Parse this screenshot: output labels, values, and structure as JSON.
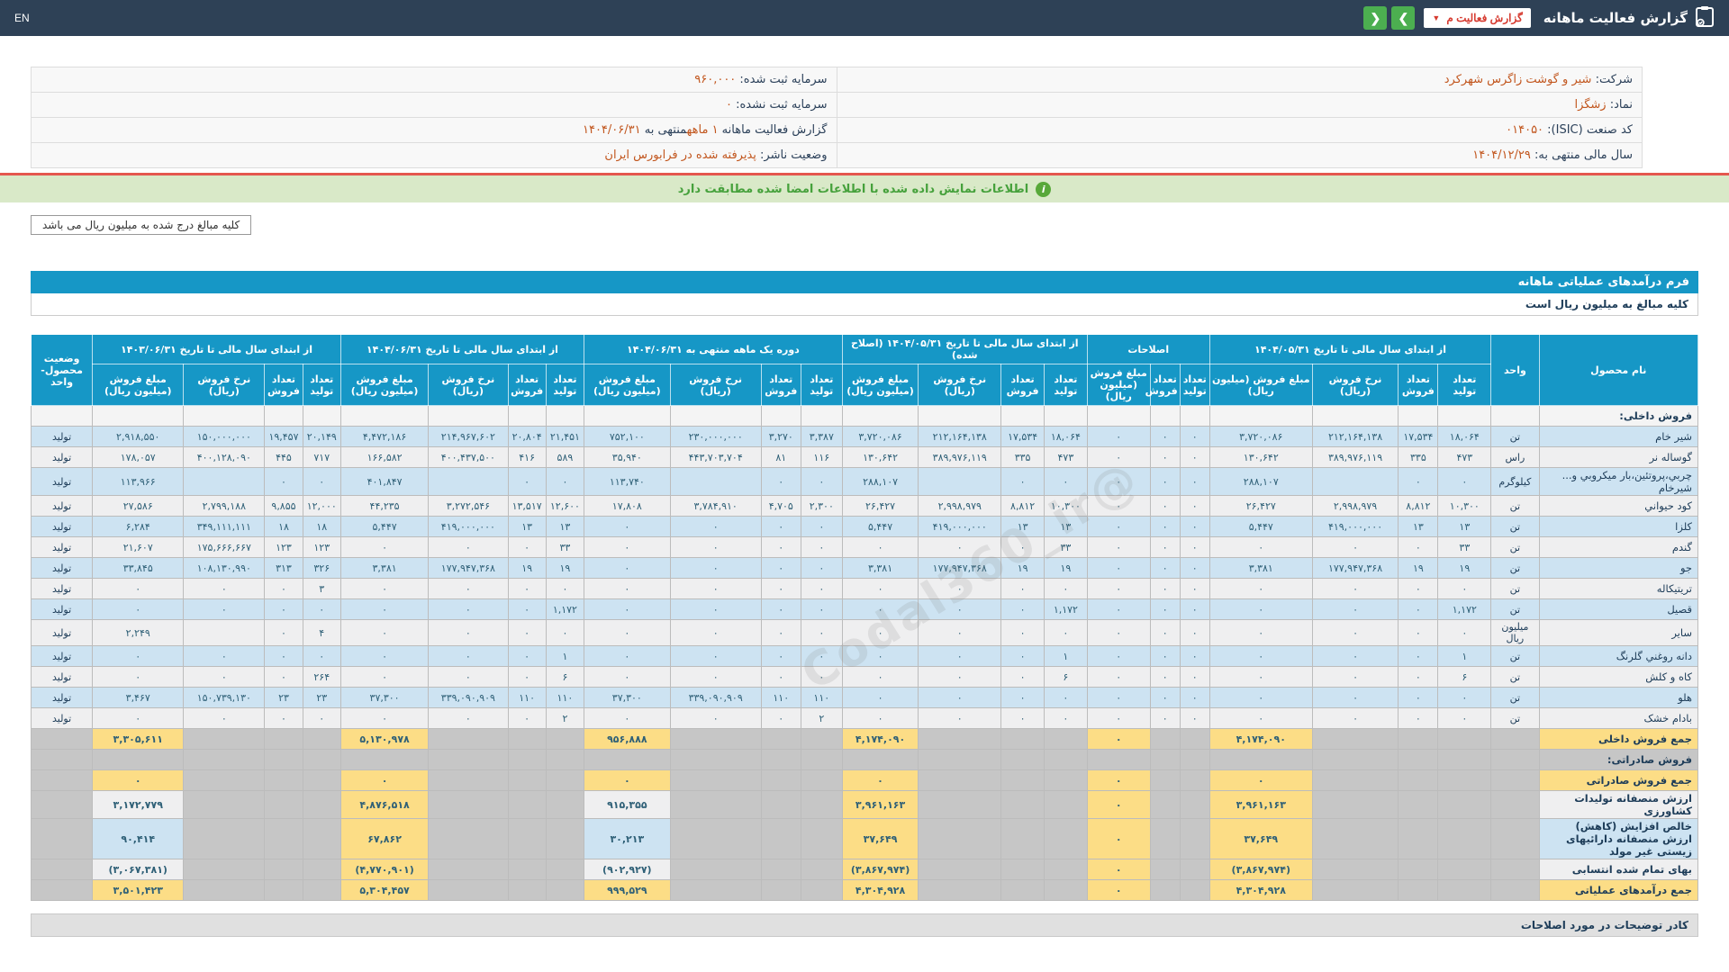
{
  "topbar": {
    "title": "گزارش فعالیت ماهانه",
    "report_dropdown": "گزارش فعالیت م",
    "dropdown_caret": "▼",
    "nav_next": "❯",
    "nav_prev": "❮",
    "language": "EN"
  },
  "info": {
    "rows": [
      {
        "right": [
          {
            "t": "شرکت:  ",
            "hl": false
          },
          {
            "t": "شیر و گوشت زاگرس شهرکرد",
            "hl": true
          }
        ],
        "left": [
          {
            "t": "سرمایه ثبت شده:  ",
            "hl": false
          },
          {
            "t": "۹۶۰,۰۰۰",
            "hl": true
          }
        ]
      },
      {
        "right": [
          {
            "t": "نماد:  ",
            "hl": false
          },
          {
            "t": "زشگزا",
            "hl": true
          }
        ],
        "left": [
          {
            "t": "سرمایه ثبت نشده:  ",
            "hl": false
          },
          {
            "t": "۰",
            "hl": true
          }
        ]
      },
      {
        "right": [
          {
            "t": "کد صنعت (ISIC):  ",
            "hl": false
          },
          {
            "t": "۰۱۴۰۵۰",
            "hl": true
          }
        ],
        "left": [
          {
            "t": "گزارش فعالیت ماهانه ",
            "hl": false
          },
          {
            "t": "۱ ماهه",
            "hl": true
          },
          {
            "t": "منتهی به ",
            "hl": false
          },
          {
            "t": "۱۴۰۴/۰۶/۳۱",
            "hl": true
          }
        ]
      },
      {
        "right": [
          {
            "t": "سال مالی منتهی به:  ",
            "hl": false
          },
          {
            "t": "۱۴۰۴/۱۲/۲۹",
            "hl": true
          }
        ],
        "left": [
          {
            "t": "وضعیت ناشر:  ",
            "hl": false
          },
          {
            "t": "پذیرفته شده در فرابورس ایران",
            "hl": true
          }
        ]
      }
    ]
  },
  "notice": {
    "text": "اطلاعات نمایش داده شده با اطلاعات امضا شده مطابقت دارد",
    "icon": "i"
  },
  "unit_note": "کلیه مبالغ درج شده به میلیون ریال می باشد",
  "form": {
    "title": "فرم درآمدهای عملیاتی ماهانه",
    "subtitle": "کلیه مبالغ به میلیون ریال است"
  },
  "watermark": "@Codal360_ir",
  "footer": {
    "comments_title": "کادر توضیحات در مورد اصلاحات"
  },
  "table": {
    "col_product": "نام محصول",
    "col_unit": "واحد",
    "col_status": "وضعیت محصول-واحد",
    "groups": [
      {
        "key": "g1",
        "label": "از ابتدای سال مالی تا تاریخ ۱۴۰۴/۰۵/۳۱",
        "cols": [
          "تعداد تولید",
          "تعداد فروش",
          "نرخ فروش (ریال)",
          "مبلغ فروش (میلیون ریال)"
        ]
      },
      {
        "key": "adj",
        "label": "اصلاحات",
        "cols": [
          "تعداد تولید",
          "تعداد فروش",
          "مبلغ فروش (میلیون ریال)"
        ]
      },
      {
        "key": "g2",
        "label": "از ابتدای سال مالی تا تاریخ ۱۴۰۴/۰۵/۳۱ (اصلاح شده)",
        "cols": [
          "تعداد تولید",
          "تعداد فروش",
          "نرخ فروش (ریال)",
          "مبلغ فروش (میلیون ریال)"
        ]
      },
      {
        "key": "month",
        "label": "دوره یک ماهه منتهی به ۱۴۰۴/۰۶/۳۱",
        "cols": [
          "تعداد تولید",
          "تعداد فروش",
          "نرخ فروش (ریال)",
          "مبلغ فروش (میلیون ریال)"
        ]
      },
      {
        "key": "ytd",
        "label": "از ابتدای سال مالی تا تاریخ ۱۴۰۴/۰۶/۳۱",
        "cols": [
          "تعداد تولید",
          "تعداد فروش",
          "نرخ فروش (ریال)",
          "مبلغ فروش (میلیون ریال)"
        ]
      },
      {
        "key": "prev",
        "label": "از ابتدای سال مالی تا تاریخ ۱۴۰۳/۰۶/۳۱",
        "cols": [
          "تعداد تولید",
          "تعداد فروش",
          "نرخ فروش (ریال)",
          "مبلغ فروش (میلیون ریال)"
        ]
      }
    ],
    "rows": [
      {
        "type": "section",
        "variant": "light",
        "name": "فروش داخلی:"
      },
      {
        "type": "product",
        "shade": "blue",
        "name": "شیر خام",
        "unit": "تن",
        "status": "تولید",
        "g1": [
          "۱۸,۰۶۴",
          "۱۷,۵۳۴",
          "۲۱۲,۱۶۴,۱۳۸",
          "۳,۷۲۰,۰۸۶"
        ],
        "adj": [
          "۰",
          "۰",
          "۰"
        ],
        "g2": [
          "۱۸,۰۶۴",
          "۱۷,۵۳۴",
          "۲۱۲,۱۶۴,۱۳۸",
          "۳,۷۲۰,۰۸۶"
        ],
        "month": [
          "۳,۳۸۷",
          "۳,۲۷۰",
          "۲۳۰,۰۰۰,۰۰۰",
          "۷۵۲,۱۰۰"
        ],
        "ytd": [
          "۲۱,۴۵۱",
          "۲۰,۸۰۴",
          "۲۱۴,۹۶۷,۶۰۲",
          "۴,۴۷۲,۱۸۶"
        ],
        "prev": [
          "۲۰,۱۴۹",
          "۱۹,۴۵۷",
          "۱۵۰,۰۰۰,۰۰۰",
          "۲,۹۱۸,۵۵۰"
        ]
      },
      {
        "type": "product",
        "shade": "white",
        "name": "گوساله نر",
        "unit": "راس",
        "status": "تولید",
        "g1": [
          "۴۷۳",
          "۳۳۵",
          "۳۸۹,۹۷۶,۱۱۹",
          "۱۳۰,۶۴۲"
        ],
        "adj": [
          "۰",
          "۰",
          "۰"
        ],
        "g2": [
          "۴۷۳",
          "۳۳۵",
          "۳۸۹,۹۷۶,۱۱۹",
          "۱۳۰,۶۴۲"
        ],
        "month": [
          "۱۱۶",
          "۸۱",
          "۴۴۳,۷۰۳,۷۰۴",
          "۳۵,۹۴۰"
        ],
        "ytd": [
          "۵۸۹",
          "۴۱۶",
          "۴۰۰,۴۳۷,۵۰۰",
          "۱۶۶,۵۸۲"
        ],
        "prev": [
          "۷۱۷",
          "۴۴۵",
          "۴۰۰,۱۲۸,۰۹۰",
          "۱۷۸,۰۵۷"
        ]
      },
      {
        "type": "product",
        "shade": "blue",
        "name": "چربي،پروتئين،بار ميکروبي و... شيرخام",
        "unit": "کیلوگرم",
        "status": "تولید",
        "g1": [
          "۰",
          "۰",
          "",
          "۲۸۸,۱۰۷"
        ],
        "adj": [
          "۰",
          "۰",
          "۰"
        ],
        "g2": [
          "۰",
          "۰",
          "",
          "۲۸۸,۱۰۷"
        ],
        "month": [
          "۰",
          "۰",
          "",
          "۱۱۳,۷۴۰"
        ],
        "ytd": [
          "۰",
          "۰",
          "",
          "۴۰۱,۸۴۷"
        ],
        "prev": [
          "۰",
          "۰",
          "",
          "۱۱۳,۹۶۶"
        ]
      },
      {
        "type": "product",
        "shade": "white",
        "name": "کود حيواني",
        "unit": "تن",
        "status": "تولید",
        "g1": [
          "۱۰,۳۰۰",
          "۸,۸۱۲",
          "۲,۹۹۸,۹۷۹",
          "۲۶,۴۲۷"
        ],
        "adj": [
          "۰",
          "۰",
          "۰"
        ],
        "g2": [
          "۱۰,۳۰۰",
          "۸,۸۱۲",
          "۲,۹۹۸,۹۷۹",
          "۲۶,۴۲۷"
        ],
        "month": [
          "۲,۳۰۰",
          "۴,۷۰۵",
          "۳,۷۸۴,۹۱۰",
          "۱۷,۸۰۸"
        ],
        "ytd": [
          "۱۲,۶۰۰",
          "۱۳,۵۱۷",
          "۳,۲۷۲,۵۴۶",
          "۴۴,۲۳۵"
        ],
        "prev": [
          "۱۲,۰۰۰",
          "۹,۸۵۵",
          "۲,۷۹۹,۱۸۸",
          "۲۷,۵۸۶"
        ]
      },
      {
        "type": "product",
        "shade": "blue",
        "name": "کلزا",
        "unit": "تن",
        "status": "تولید",
        "g1": [
          "۱۳",
          "۱۳",
          "۴۱۹,۰۰۰,۰۰۰",
          "۵,۴۴۷"
        ],
        "adj": [
          "۰",
          "۰",
          "۰"
        ],
        "g2": [
          "۱۳",
          "۱۳",
          "۴۱۹,۰۰۰,۰۰۰",
          "۵,۴۴۷"
        ],
        "month": [
          "۰",
          "۰",
          "۰",
          "۰"
        ],
        "ytd": [
          "۱۳",
          "۱۳",
          "۴۱۹,۰۰۰,۰۰۰",
          "۵,۴۴۷"
        ],
        "prev": [
          "۱۸",
          "۱۸",
          "۳۴۹,۱۱۱,۱۱۱",
          "۶,۲۸۴"
        ]
      },
      {
        "type": "product",
        "shade": "white",
        "name": "گندم",
        "unit": "تن",
        "status": "تولید",
        "g1": [
          "۳۳",
          "۰",
          "۰",
          "۰"
        ],
        "adj": [
          "۰",
          "۰",
          "۰"
        ],
        "g2": [
          "۳۳",
          "۰",
          "۰",
          "۰"
        ],
        "month": [
          "۰",
          "۰",
          "۰",
          "۰"
        ],
        "ytd": [
          "۳۳",
          "۰",
          "۰",
          "۰"
        ],
        "prev": [
          "۱۲۳",
          "۱۲۳",
          "۱۷۵,۶۶۶,۶۶۷",
          "۲۱,۶۰۷"
        ]
      },
      {
        "type": "product",
        "shade": "blue",
        "name": "جو",
        "unit": "تن",
        "status": "تولید",
        "g1": [
          "۱۹",
          "۱۹",
          "۱۷۷,۹۴۷,۳۶۸",
          "۳,۳۸۱"
        ],
        "adj": [
          "۰",
          "۰",
          "۰"
        ],
        "g2": [
          "۱۹",
          "۱۹",
          "۱۷۷,۹۴۷,۳۶۸",
          "۳,۳۸۱"
        ],
        "month": [
          "۰",
          "۰",
          "۰",
          "۰"
        ],
        "ytd": [
          "۱۹",
          "۱۹",
          "۱۷۷,۹۴۷,۳۶۸",
          "۳,۳۸۱"
        ],
        "prev": [
          "۳۲۶",
          "۳۱۳",
          "۱۰۸,۱۳۰,۹۹۰",
          "۳۳,۸۴۵"
        ]
      },
      {
        "type": "product",
        "shade": "white",
        "name": "تریتیکاله",
        "unit": "تن",
        "status": "تولید",
        "g1": [
          "۰",
          "۰",
          "۰",
          "۰"
        ],
        "adj": [
          "۰",
          "۰",
          "۰"
        ],
        "g2": [
          "۰",
          "۰",
          "۰",
          "۰"
        ],
        "month": [
          "۰",
          "۰",
          "۰",
          "۰"
        ],
        "ytd": [
          "۰",
          "۰",
          "۰",
          "۰"
        ],
        "prev": [
          "۳",
          "۰",
          "۰",
          "۰"
        ]
      },
      {
        "type": "product",
        "shade": "blue",
        "name": "قصیل",
        "unit": "تن",
        "status": "تولید",
        "g1": [
          "۱,۱۷۲",
          "۰",
          "۰",
          "۰"
        ],
        "adj": [
          "۰",
          "۰",
          "۰"
        ],
        "g2": [
          "۱,۱۷۲",
          "۰",
          "۰",
          "۰"
        ],
        "month": [
          "۰",
          "۰",
          "۰",
          "۰"
        ],
        "ytd": [
          "۱,۱۷۲",
          "۰",
          "۰",
          "۰"
        ],
        "prev": [
          "۰",
          "۰",
          "۰",
          "۰"
        ]
      },
      {
        "type": "product",
        "shade": "white",
        "name": "سایر",
        "unit": "میلیون ریال",
        "status": "تولید",
        "g1": [
          "۰",
          "۰",
          "۰",
          "۰"
        ],
        "adj": [
          "۰",
          "۰",
          "۰"
        ],
        "g2": [
          "۰",
          "۰",
          "۰",
          "۰"
        ],
        "month": [
          "۰",
          "۰",
          "۰",
          "۰"
        ],
        "ytd": [
          "۰",
          "۰",
          "۰",
          "۰"
        ],
        "prev": [
          "۴",
          "۰",
          "",
          "۲,۲۴۹"
        ]
      },
      {
        "type": "product",
        "shade": "blue",
        "name": "دانه روغني گلرنگ",
        "unit": "تن",
        "status": "تولید",
        "g1": [
          "۱",
          "۰",
          "۰",
          "۰"
        ],
        "adj": [
          "۰",
          "۰",
          "۰"
        ],
        "g2": [
          "۱",
          "۰",
          "۰",
          "۰"
        ],
        "month": [
          "۰",
          "۰",
          "۰",
          "۰"
        ],
        "ytd": [
          "۱",
          "۰",
          "۰",
          "۰"
        ],
        "prev": [
          "۰",
          "۰",
          "۰",
          "۰"
        ]
      },
      {
        "type": "product",
        "shade": "white",
        "name": "کاه و کلش",
        "unit": "تن",
        "status": "تولید",
        "g1": [
          "۶",
          "۰",
          "۰",
          "۰"
        ],
        "adj": [
          "۰",
          "۰",
          "۰"
        ],
        "g2": [
          "۶",
          "۰",
          "۰",
          "۰"
        ],
        "month": [
          "۰",
          "۰",
          "۰",
          "۰"
        ],
        "ytd": [
          "۶",
          "۰",
          "۰",
          "۰"
        ],
        "prev": [
          "۲۶۴",
          "۰",
          "۰",
          "۰"
        ]
      },
      {
        "type": "product",
        "shade": "blue",
        "name": "هلو",
        "unit": "تن",
        "status": "تولید",
        "g1": [
          "۰",
          "۰",
          "۰",
          "۰"
        ],
        "adj": [
          "۰",
          "۰",
          "۰"
        ],
        "g2": [
          "۰",
          "۰",
          "۰",
          "۰"
        ],
        "month": [
          "۱۱۰",
          "۱۱۰",
          "۳۳۹,۰۹۰,۹۰۹",
          "۳۷,۳۰۰"
        ],
        "ytd": [
          "۱۱۰",
          "۱۱۰",
          "۳۳۹,۰۹۰,۹۰۹",
          "۳۷,۳۰۰"
        ],
        "prev": [
          "۲۳",
          "۲۳",
          "۱۵۰,۷۳۹,۱۳۰",
          "۳,۴۶۷"
        ]
      },
      {
        "type": "product",
        "shade": "white",
        "name": "بادام خشک",
        "unit": "تن",
        "status": "تولید",
        "g1": [
          "۰",
          "۰",
          "۰",
          "۰"
        ],
        "adj": [
          "۰",
          "۰",
          "۰"
        ],
        "g2": [
          "۰",
          "۰",
          "۰",
          "۰"
        ],
        "month": [
          "۲",
          "۰",
          "۰",
          "۰"
        ],
        "ytd": [
          "۲",
          "۰",
          "۰",
          "۰"
        ],
        "prev": [
          "۰",
          "۰",
          "۰",
          "۰"
        ]
      },
      {
        "type": "summary",
        "name": "جمع فروش داخلی",
        "name_bg": "yellow",
        "shade": "white",
        "stripe_cols": [],
        "amounts": {
          "g1": "۴,۱۷۴,۰۹۰",
          "adj": "۰",
          "g2": "۴,۱۷۴,۰۹۰",
          "month": "۹۵۶,۸۸۸",
          "ytd": "۵,۱۳۰,۹۷۸",
          "prev": "۳,۳۰۵,۶۱۱"
        }
      },
      {
        "type": "section",
        "variant": "dark",
        "name": "فروش صادراتی:"
      },
      {
        "type": "summary",
        "name": "جمع فروش صادراتی",
        "name_bg": "yellow",
        "shade": "white",
        "stripe_cols": [],
        "amounts": {
          "g1": "۰",
          "adj": "۰",
          "g2": "۰",
          "month": "۰",
          "ytd": "۰",
          "prev": "۰"
        }
      },
      {
        "type": "summary",
        "name": "ارزش منصفانه تولیدات کشاورزی",
        "name_bg": "stripe",
        "shade": "white",
        "stripe_cols": [
          "month",
          "prev"
        ],
        "amounts": {
          "g1": "۳,۹۶۱,۱۶۳",
          "adj": "۰",
          "g2": "۳,۹۶۱,۱۶۳",
          "month": "۹۱۵,۳۵۵",
          "ytd": "۴,۸۷۶,۵۱۸",
          "prev": "۳,۱۷۲,۷۷۹"
        }
      },
      {
        "type": "summary",
        "name": "خالص افزایش (کاهش) ارزش منصفانه دارائیهای زیستی غیر مولد",
        "name_bg": "stripe",
        "shade": "blue",
        "stripe_cols": [
          "month",
          "prev"
        ],
        "amounts": {
          "g1": "۳۷,۶۴۹",
          "adj": "۰",
          "g2": "۳۷,۶۴۹",
          "month": "۳۰,۲۱۳",
          "ytd": "۶۷,۸۶۲",
          "prev": "۹۰,۴۱۴"
        }
      },
      {
        "type": "summary",
        "name": "بهای تمام شده انتسابی",
        "name_bg": "stripe",
        "shade": "white",
        "stripe_cols": [
          "month",
          "prev"
        ],
        "amounts": {
          "g1": "(۳,۸۶۷,۹۷۴)",
          "adj": "۰",
          "g2": "(۳,۸۶۷,۹۷۴)",
          "month": "(۹۰۲,۹۲۷)",
          "ytd": "(۴,۷۷۰,۹۰۱)",
          "prev": "(۳,۰۶۷,۳۸۱)"
        }
      },
      {
        "type": "summary",
        "name": "جمع درآمدهای عملیاتی",
        "name_bg": "yellow",
        "shade": "white",
        "stripe_cols": [],
        "amounts": {
          "g1": "۴,۳۰۴,۹۲۸",
          "adj": "۰",
          "g2": "۴,۳۰۴,۹۲۸",
          "month": "۹۹۹,۵۲۹",
          "ytd": "۵,۳۰۴,۴۵۷",
          "prev": "۳,۵۰۱,۴۲۳"
        }
      }
    ]
  }
}
